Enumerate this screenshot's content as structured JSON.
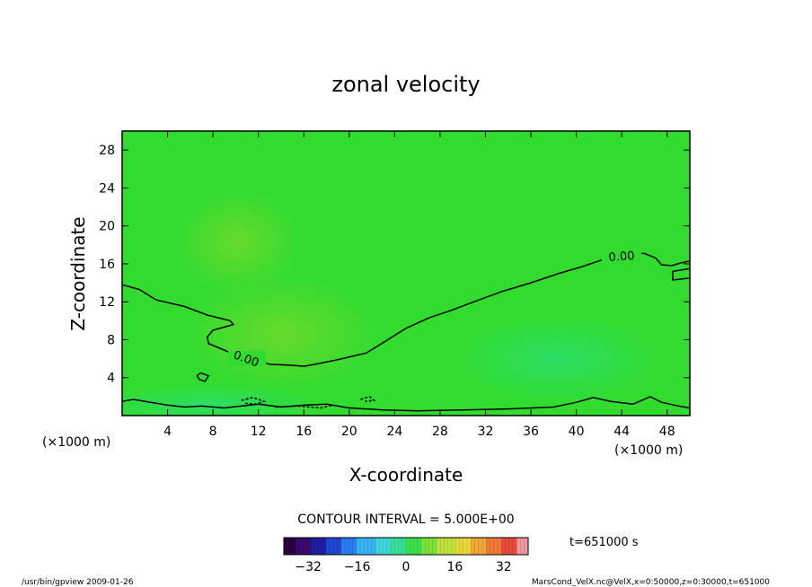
{
  "chart_data": {
    "type": "contour",
    "title": "zonal velocity",
    "xlabel": "X-coordinate",
    "ylabel": "Z-coordinate",
    "x_unit": "(×1000 m)",
    "y_unit": "(×1000 m)",
    "xlim": [
      0,
      50
    ],
    "ylim": [
      0,
      30
    ],
    "x_ticks": [
      4,
      8,
      12,
      16,
      20,
      24,
      28,
      32,
      36,
      40,
      44,
      48
    ],
    "y_ticks": [
      4,
      8,
      12,
      16,
      20,
      24,
      28
    ],
    "contour_labels": [
      "0.00",
      "0.00"
    ],
    "zero_contour_main": [
      {
        "x": 0.0,
        "y": 13.8
      },
      {
        "x": 1.5,
        "y": 13.3
      },
      {
        "x": 3.0,
        "y": 12.2
      },
      {
        "x": 5.5,
        "y": 11.5
      },
      {
        "x": 7.5,
        "y": 10.6
      },
      {
        "x": 9.5,
        "y": 10.0
      },
      {
        "x": 9.8,
        "y": 9.6
      },
      {
        "x": 8.0,
        "y": 9.0
      },
      {
        "x": 7.5,
        "y": 8.3
      },
      {
        "x": 7.6,
        "y": 7.6
      },
      {
        "x": 8.6,
        "y": 7.1
      },
      {
        "x": 9.6,
        "y": 6.6
      },
      {
        "x": 10.4,
        "y": 6.2
      },
      {
        "x": 11.7,
        "y": 5.8
      },
      {
        "x": 13.0,
        "y": 5.4
      },
      {
        "x": 15.0,
        "y": 5.3
      },
      {
        "x": 16.0,
        "y": 5.2
      },
      {
        "x": 17.0,
        "y": 5.4
      },
      {
        "x": 19.0,
        "y": 5.9
      },
      {
        "x": 21.5,
        "y": 6.6
      },
      {
        "x": 23.0,
        "y": 7.7
      },
      {
        "x": 25.0,
        "y": 9.2
      },
      {
        "x": 27.0,
        "y": 10.3
      },
      {
        "x": 29.0,
        "y": 11.1
      },
      {
        "x": 31.0,
        "y": 12.0
      },
      {
        "x": 33.5,
        "y": 13.1
      },
      {
        "x": 36.0,
        "y": 14.0
      },
      {
        "x": 38.5,
        "y": 15.0
      },
      {
        "x": 40.5,
        "y": 15.7
      },
      {
        "x": 42.5,
        "y": 16.5
      },
      {
        "x": 44.5,
        "y": 17.0
      },
      {
        "x": 46.0,
        "y": 17.1
      },
      {
        "x": 47.0,
        "y": 16.6
      },
      {
        "x": 47.5,
        "y": 15.9
      },
      {
        "x": 48.4,
        "y": 15.8
      },
      {
        "x": 49.2,
        "y": 16.1
      },
      {
        "x": 50.0,
        "y": 16.3
      }
    ],
    "zero_contour_right": [
      {
        "x": 50.0,
        "y": 14.5
      },
      {
        "x": 48.5,
        "y": 14.3
      },
      {
        "x": 48.5,
        "y": 15.2
      },
      {
        "x": 50.0,
        "y": 15.5
      }
    ],
    "zero_contour_loop": [
      {
        "x": 6.9,
        "y": 4.5
      },
      {
        "x": 7.6,
        "y": 4.2
      },
      {
        "x": 7.3,
        "y": 3.6
      },
      {
        "x": 6.8,
        "y": 3.8
      },
      {
        "x": 6.6,
        "y": 4.2
      },
      {
        "x": 6.9,
        "y": 4.5
      }
    ],
    "zero_contour_bottom": [
      {
        "x": 0.0,
        "y": 1.5
      },
      {
        "x": 1.0,
        "y": 1.7
      },
      {
        "x": 2.5,
        "y": 1.4
      },
      {
        "x": 4.0,
        "y": 1.1
      },
      {
        "x": 5.5,
        "y": 0.9
      },
      {
        "x": 7.0,
        "y": 1.0
      },
      {
        "x": 9.0,
        "y": 0.8
      },
      {
        "x": 12.0,
        "y": 1.2
      },
      {
        "x": 14.0,
        "y": 0.9
      },
      {
        "x": 16.0,
        "y": 1.1
      },
      {
        "x": 18.0,
        "y": 1.2
      },
      {
        "x": 20.0,
        "y": 0.8
      },
      {
        "x": 23.0,
        "y": 0.6
      },
      {
        "x": 26.0,
        "y": 0.5
      },
      {
        "x": 30.0,
        "y": 0.6
      },
      {
        "x": 34.0,
        "y": 0.7
      },
      {
        "x": 38.0,
        "y": 0.9
      },
      {
        "x": 40.0,
        "y": 1.4
      },
      {
        "x": 41.5,
        "y": 1.9
      },
      {
        "x": 43.0,
        "y": 1.5
      },
      {
        "x": 45.0,
        "y": 1.2
      },
      {
        "x": 46.5,
        "y": 2.0
      },
      {
        "x": 47.5,
        "y": 1.4
      },
      {
        "x": 49.0,
        "y": 1.0
      },
      {
        "x": 50.0,
        "y": 0.8
      }
    ],
    "negative_contours": [
      [
        {
          "x": 10.5,
          "y": 1.6
        },
        {
          "x": 11.5,
          "y": 1.9
        },
        {
          "x": 12.5,
          "y": 1.5
        },
        {
          "x": 11.8,
          "y": 1.2
        },
        {
          "x": 10.8,
          "y": 1.3
        }
      ],
      [
        {
          "x": 13.5,
          "y": 0.9
        },
        {
          "x": 15.5,
          "y": 1.0
        },
        {
          "x": 17.5,
          "y": 0.8
        },
        {
          "x": 18.5,
          "y": 1.1
        }
      ],
      [
        {
          "x": 21.0,
          "y": 1.7
        },
        {
          "x": 21.8,
          "y": 2.0
        },
        {
          "x": 22.2,
          "y": 1.6
        },
        {
          "x": 21.4,
          "y": 1.5
        }
      ]
    ],
    "colorbar": {
      "ticks": [
        "−32",
        "−16",
        "0",
        "16",
        "32"
      ],
      "range": [
        -40,
        40
      ],
      "colors": [
        "#2a0040",
        "#3b0a6e",
        "#1d1fa0",
        "#1f46d0",
        "#2a7cf0",
        "#39b2f5",
        "#3cd8d8",
        "#35e09a",
        "#3ce04a",
        "#7de23a",
        "#bfe23a",
        "#e8d83a",
        "#f0a83a",
        "#f07838",
        "#e84a3a",
        "#f09aa0"
      ]
    },
    "field_color": "#32dc2e",
    "contour_interval": "CONTOUR INTERVAL = 5.000E+00",
    "time_label": "t=651000  s"
  },
  "footer": {
    "left": "/usr/bin/gpview   2009-01-26",
    "right": "MarsCond_VelX.nc@VelX,x=0:50000,z=0:30000,t=651000"
  }
}
